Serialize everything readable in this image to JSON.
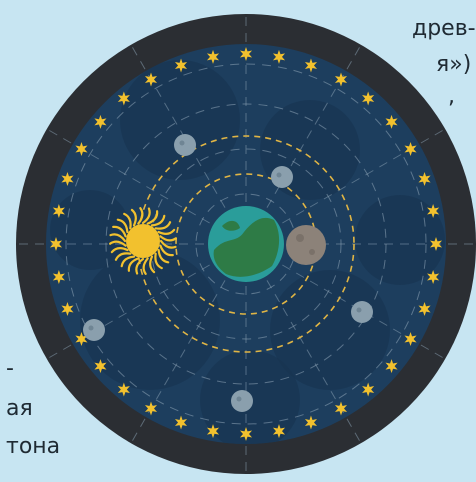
{
  "text_fragments": {
    "top_line_1": "древ-",
    "top_line_2": "я»)",
    "top_line_3": ",",
    "bottom_line_1": "-",
    "bottom_line_2": "ая",
    "bottom_line_3": "тона"
  },
  "diagram": {
    "model": "geocentric",
    "star_count": 36,
    "orbit_count": 2,
    "colors": {
      "outer_ring": "#2b2e33",
      "sky": "#1d3e5e",
      "sky_dark": "#183450",
      "guides": "#8fa6b8",
      "orbit_dashes": "#e0b545",
      "stars": "#f2c12e",
      "sun": "#f2c12e",
      "earth_water": "#2a9d9a",
      "earth_land": "#2e7b46",
      "moon": "#8c8279",
      "planets": "#8a9fad"
    },
    "bodies": [
      {
        "name": "earth",
        "icon": "earth-icon"
      },
      {
        "name": "moon",
        "icon": "moon-icon"
      },
      {
        "name": "sun",
        "icon": "sun-icon"
      },
      {
        "name": "planet",
        "icon": "planet-icon"
      },
      {
        "name": "planet",
        "icon": "planet-icon"
      },
      {
        "name": "planet",
        "icon": "planet-icon"
      },
      {
        "name": "planet",
        "icon": "planet-icon"
      },
      {
        "name": "planet",
        "icon": "planet-icon"
      }
    ]
  }
}
